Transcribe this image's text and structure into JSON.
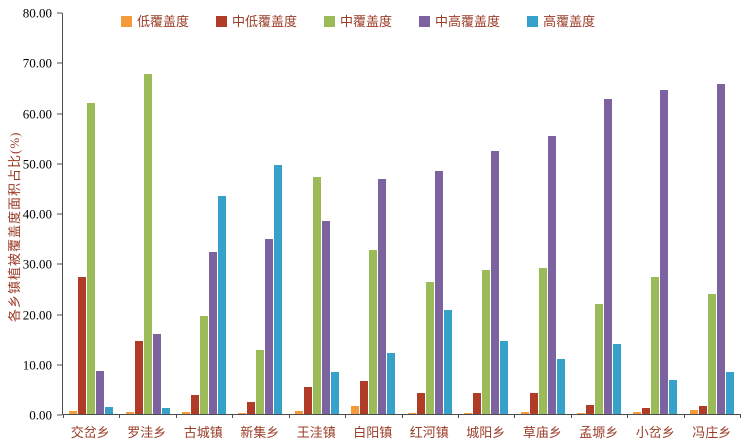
{
  "colors": {
    "axis": "#4d4d4d",
    "tick_text": "#000000",
    "label_text": "#9a3b26"
  },
  "chart_data": {
    "type": "bar",
    "title": "",
    "xlabel": "",
    "ylabel": "各乡镇植被覆盖度面积占比(%)",
    "ylim": [
      0,
      80
    ],
    "yticks": [
      "0.00",
      "10.00",
      "20.00",
      "30.00",
      "40.00",
      "50.00",
      "60.00",
      "70.00",
      "80.00"
    ],
    "grid": false,
    "legend_position": "top",
    "categories": [
      "交岔乡",
      "罗洼乡",
      "古城镇",
      "新集乡",
      "王洼镇",
      "白阳镇",
      "红河镇",
      "城阳乡",
      "草庙乡",
      "孟塬乡",
      "小岔乡",
      "冯庄乡"
    ],
    "series": [
      {
        "name": "低覆盖度",
        "color": "#F59B3C",
        "values": [
          0.7,
          0.5,
          0.4,
          0.3,
          0.6,
          1.5,
          0.3,
          0.3,
          0.5,
          0.3,
          0.4,
          0.9
        ]
      },
      {
        "name": "中低覆盖度",
        "color": "#B03B27",
        "values": [
          27.3,
          14.5,
          3.8,
          2.3,
          5.4,
          6.5,
          4.2,
          4.1,
          4.1,
          1.8,
          1.2,
          1.5
        ]
      },
      {
        "name": "中覆盖度",
        "color": "#9BBB59",
        "values": [
          62.0,
          67.8,
          19.6,
          12.7,
          47.2,
          32.7,
          26.3,
          28.8,
          29.2,
          21.9,
          27.3,
          24.0
        ]
      },
      {
        "name": "中高覆盖度",
        "color": "#7D62A0",
        "values": [
          8.5,
          16.0,
          32.3,
          35.0,
          38.5,
          46.8,
          48.5,
          52.5,
          55.4,
          62.8,
          64.6,
          65.9
        ]
      },
      {
        "name": "高覆盖度",
        "color": "#36A2C9",
        "values": [
          1.3,
          1.2,
          43.5,
          49.7,
          8.3,
          12.1,
          20.8,
          14.5,
          10.9,
          13.9,
          6.7,
          8.4
        ]
      }
    ]
  }
}
